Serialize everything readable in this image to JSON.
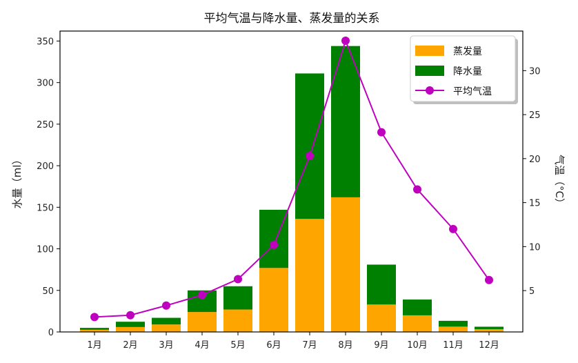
{
  "chart_data": {
    "type": "bar",
    "title": "平均气温与降水量、蒸发量的关系",
    "categories": [
      "1月",
      "2月",
      "3月",
      "4月",
      "5月",
      "6月",
      "7月",
      "8月",
      "9月",
      "10月",
      "11月",
      "12月"
    ],
    "ylabel": "水量（ml）",
    "y2label": "气温（°C）",
    "ylim": [
      0,
      362
    ],
    "y2lim": [
      0.3,
      34.5
    ],
    "yticks": [
      0,
      50,
      100,
      150,
      200,
      250,
      300,
      350
    ],
    "y2ticks": [
      5,
      10,
      15,
      20,
      25,
      30
    ],
    "stacked": true,
    "series": [
      {
        "name": "蒸发量",
        "kind": "bar",
        "axis": "left",
        "color": "#ffa500",
        "values": [
          2.6,
          5.9,
          9.0,
          24.0,
          27.0,
          77.0,
          136.0,
          162.0,
          33.0,
          20.0,
          6.4,
          3.3
        ]
      },
      {
        "name": "降水量",
        "kind": "bar",
        "axis": "left",
        "color": "#008000",
        "values": [
          2.3,
          6.4,
          8.0,
          26.0,
          28.0,
          70.0,
          175.0,
          182.0,
          48.0,
          19.0,
          7.0,
          3.0
        ]
      },
      {
        "name": "平均气温",
        "kind": "line",
        "axis": "right",
        "color": "#bf00bf",
        "values": [
          2.0,
          2.2,
          3.3,
          4.5,
          6.3,
          10.2,
          20.3,
          33.4,
          23.0,
          16.5,
          12.0,
          6.2
        ]
      }
    ],
    "legend": "top-right",
    "grid": false
  }
}
